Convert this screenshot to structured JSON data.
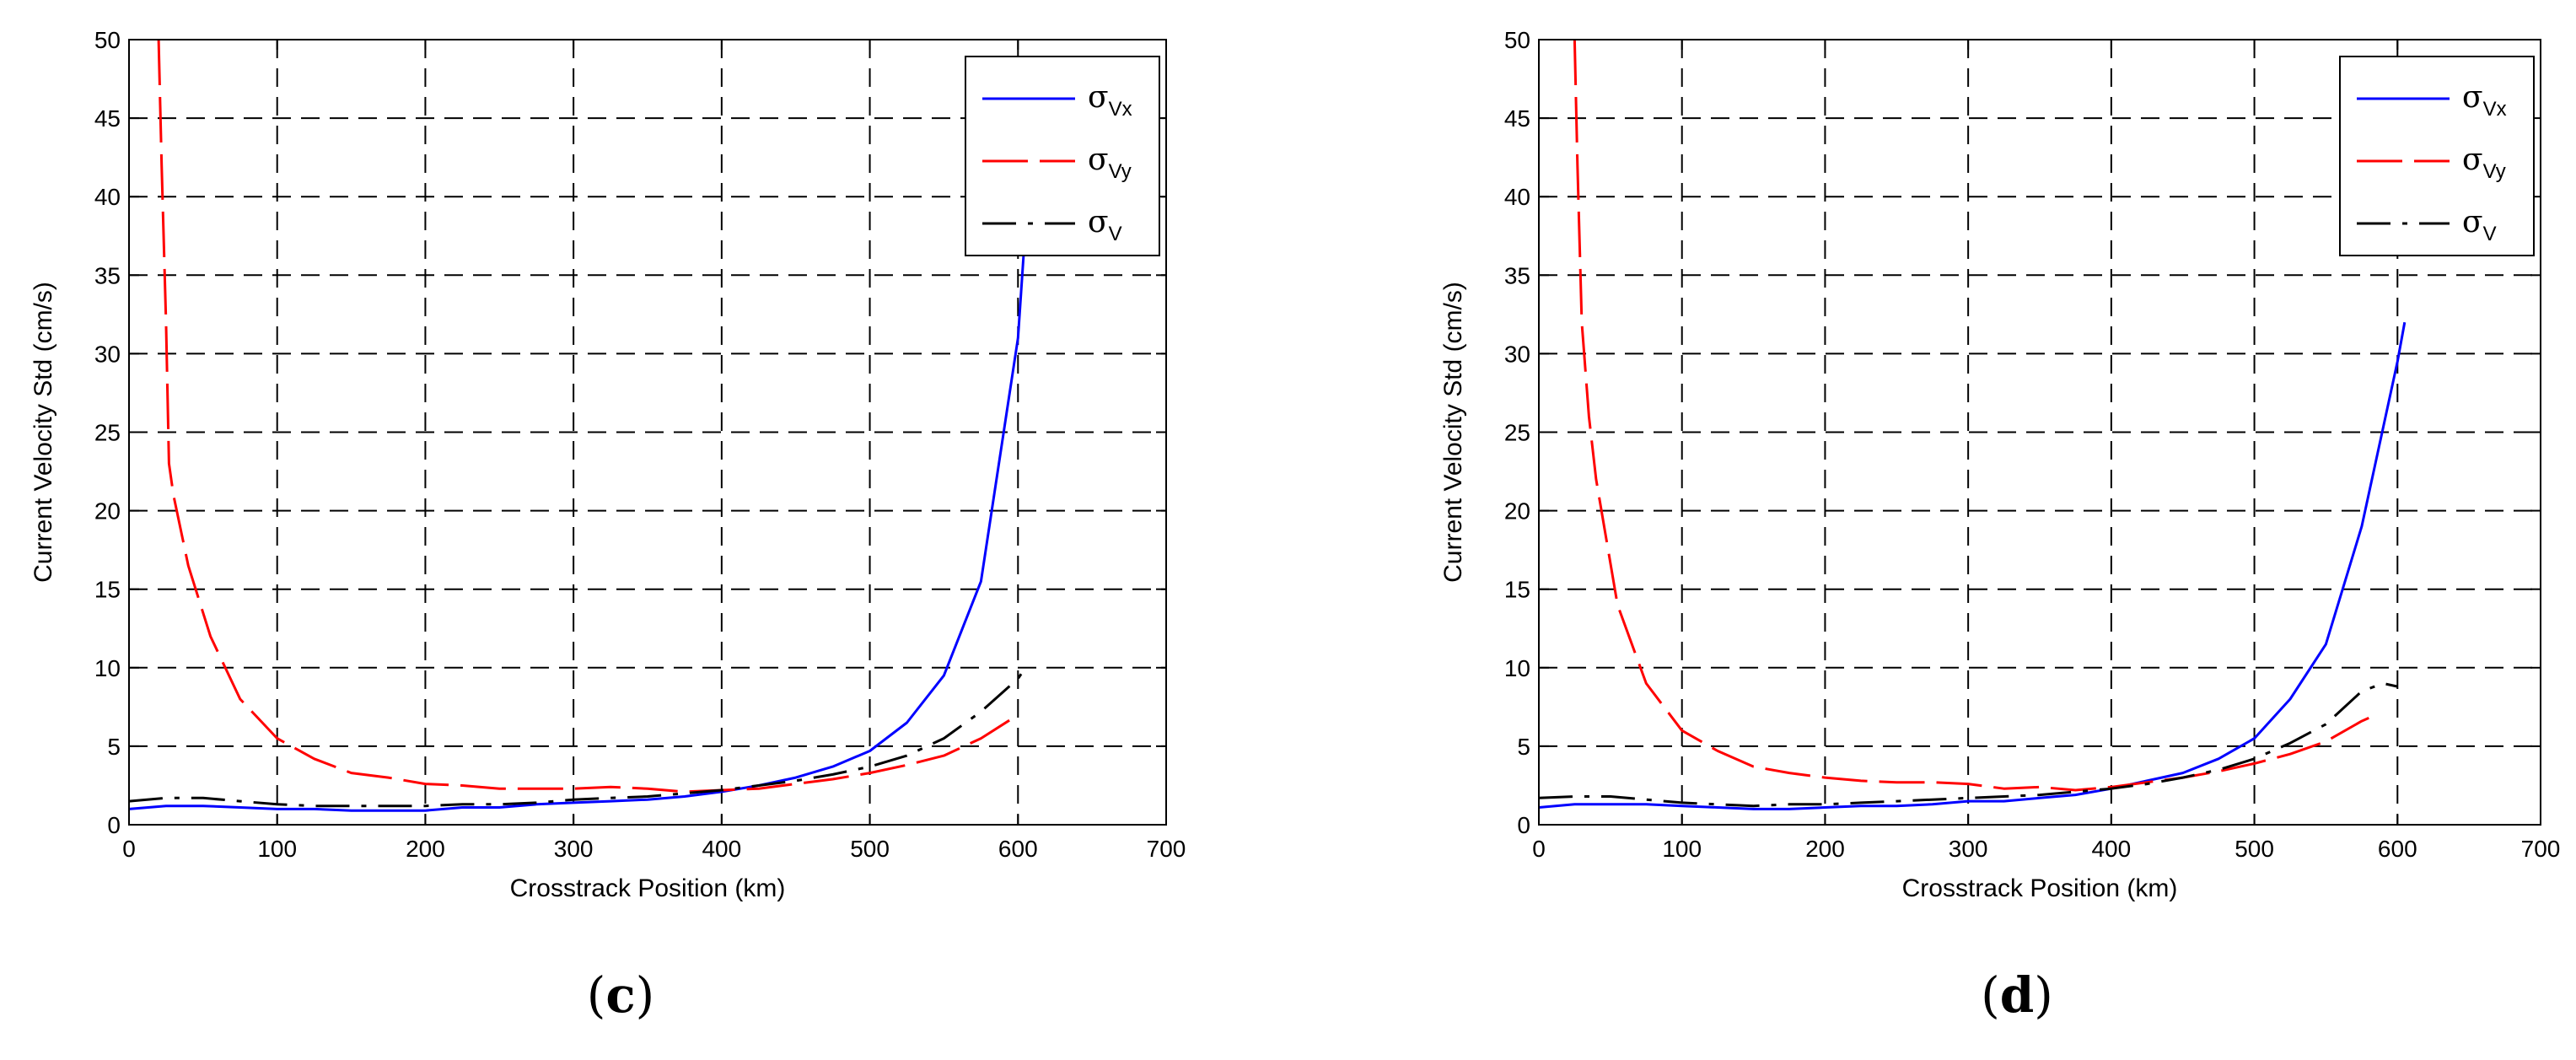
{
  "chart_data": [
    {
      "type": "line",
      "panel_label": {
        "open": "(",
        "letter": "c",
        "close": ")"
      },
      "xlabel": "Crosstrack Position (km)",
      "ylabel": "Current Velocity Std  (cm/s)",
      "xlim": [
        0,
        700
      ],
      "ylim": [
        0,
        50
      ],
      "xticks": [
        0,
        100,
        200,
        300,
        400,
        500,
        600,
        700
      ],
      "yticks": [
        0,
        5,
        10,
        15,
        20,
        25,
        30,
        35,
        40,
        45,
        50
      ],
      "grid": true,
      "legend_position": "top-right",
      "series": [
        {
          "name": "σVx",
          "symbol": "σ",
          "sub": "Vx",
          "color": "#0000ff",
          "dash": "solid",
          "x": [
            0,
            25,
            50,
            75,
            100,
            125,
            150,
            175,
            200,
            225,
            250,
            275,
            300,
            325,
            350,
            375,
            400,
            425,
            450,
            475,
            500,
            525,
            550,
            575,
            600,
            605
          ],
          "y": [
            1.0,
            1.2,
            1.2,
            1.1,
            1.0,
            1.0,
            0.9,
            0.9,
            0.9,
            1.1,
            1.1,
            1.3,
            1.4,
            1.5,
            1.6,
            1.8,
            2.1,
            2.5,
            3.0,
            3.7,
            4.7,
            6.5,
            9.5,
            15.5,
            31.0,
            38.0
          ]
        },
        {
          "name": "σVy",
          "symbol": "σ",
          "sub": "Vy",
          "color": "#ff0000",
          "dash": "long",
          "x": [
            20,
            22,
            25,
            27,
            30,
            40,
            55,
            75,
            100,
            125,
            150,
            175,
            200,
            225,
            250,
            275,
            300,
            325,
            350,
            375,
            400,
            425,
            450,
            475,
            500,
            525,
            550,
            575,
            600
          ],
          "y": [
            50.0,
            42.0,
            32.0,
            23.0,
            21.0,
            16.5,
            12.0,
            8.0,
            5.5,
            4.2,
            3.3,
            3.0,
            2.6,
            2.5,
            2.3,
            2.3,
            2.3,
            2.4,
            2.3,
            2.1,
            2.2,
            2.3,
            2.6,
            2.9,
            3.3,
            3.8,
            4.4,
            5.5,
            7.0
          ]
        },
        {
          "name": "σV",
          "symbol": "σ",
          "sub": "V",
          "color": "#000000",
          "dash": "dashdot",
          "x": [
            0,
            25,
            50,
            75,
            100,
            125,
            150,
            175,
            200,
            225,
            250,
            275,
            300,
            325,
            350,
            375,
            400,
            425,
            450,
            475,
            500,
            525,
            550,
            575,
            600,
            605
          ],
          "y": [
            1.5,
            1.7,
            1.7,
            1.5,
            1.3,
            1.2,
            1.2,
            1.2,
            1.2,
            1.3,
            1.3,
            1.4,
            1.6,
            1.7,
            1.8,
            2.0,
            2.2,
            2.5,
            2.8,
            3.2,
            3.7,
            4.4,
            5.5,
            7.2,
            9.3,
            10.0
          ]
        }
      ]
    },
    {
      "type": "line",
      "panel_label": {
        "open": "(",
        "letter": "d",
        "close": ")"
      },
      "xlabel": "Crosstrack Position (km)",
      "ylabel": "Current Velocity Std  (cm/s)",
      "xlim": [
        0,
        700
      ],
      "ylim": [
        0,
        50
      ],
      "xticks": [
        0,
        100,
        200,
        300,
        400,
        500,
        600,
        700
      ],
      "yticks": [
        0,
        5,
        10,
        15,
        20,
        25,
        30,
        35,
        40,
        45,
        50
      ],
      "grid": true,
      "legend_position": "top-right",
      "series": [
        {
          "name": "σVx",
          "symbol": "σ",
          "sub": "Vx",
          "color": "#0000ff",
          "dash": "solid",
          "x": [
            0,
            25,
            50,
            75,
            100,
            125,
            150,
            175,
            200,
            225,
            250,
            275,
            300,
            325,
            350,
            375,
            400,
            425,
            450,
            475,
            500,
            525,
            550,
            575,
            600,
            605
          ],
          "y": [
            1.1,
            1.3,
            1.3,
            1.3,
            1.2,
            1.1,
            1.0,
            1.0,
            1.1,
            1.2,
            1.2,
            1.3,
            1.5,
            1.5,
            1.7,
            1.9,
            2.3,
            2.8,
            3.3,
            4.2,
            5.5,
            8.0,
            11.5,
            19.0,
            29.5,
            32.0
          ]
        },
        {
          "name": "σVy",
          "symbol": "σ",
          "sub": "Vy",
          "color": "#ff0000",
          "dash": "long",
          "x": [
            25,
            27,
            30,
            35,
            40,
            55,
            75,
            100,
            125,
            150,
            175,
            200,
            225,
            250,
            275,
            300,
            325,
            350,
            375,
            400,
            425,
            450,
            475,
            500,
            525,
            550,
            575,
            580
          ],
          "y": [
            50.0,
            42.0,
            32.0,
            26.0,
            22.0,
            14.0,
            9.0,
            6.0,
            4.7,
            3.7,
            3.3,
            3.0,
            2.8,
            2.7,
            2.7,
            2.6,
            2.3,
            2.4,
            2.2,
            2.4,
            2.7,
            3.0,
            3.4,
            3.9,
            4.5,
            5.3,
            6.6,
            6.8
          ]
        },
        {
          "name": "σV",
          "symbol": "σ",
          "sub": "V",
          "color": "#000000",
          "dash": "dashdot",
          "x": [
            0,
            25,
            50,
            75,
            100,
            125,
            150,
            175,
            200,
            225,
            250,
            275,
            300,
            325,
            350,
            375,
            400,
            425,
            450,
            475,
            500,
            525,
            550,
            575,
            590,
            600
          ],
          "y": [
            1.7,
            1.8,
            1.8,
            1.6,
            1.4,
            1.3,
            1.2,
            1.3,
            1.3,
            1.4,
            1.5,
            1.6,
            1.7,
            1.8,
            1.9,
            2.1,
            2.3,
            2.6,
            3.0,
            3.5,
            4.2,
            5.2,
            6.4,
            8.5,
            9.0,
            8.8
          ]
        }
      ]
    }
  ]
}
